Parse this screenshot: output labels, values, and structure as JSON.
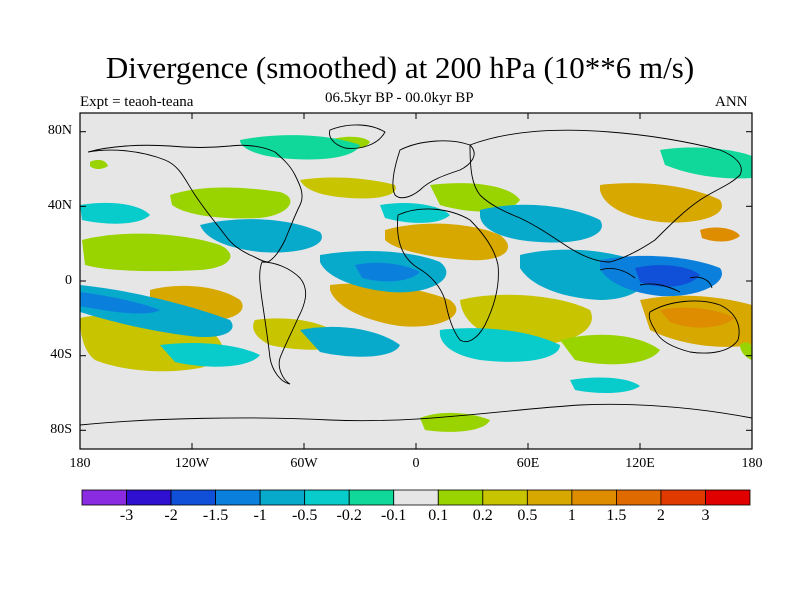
{
  "title": "Divergence (smoothed) at 200 hPa (10**6 m/s)",
  "experiment": "Expt = teaoh-teana",
  "period": "06.5kyr BP - 00.0kyr BP",
  "season": "ANN",
  "lat_labels": [
    "80N",
    "40N",
    "0",
    "40S",
    "80S"
  ],
  "lon_labels": [
    "180",
    "120W",
    "60W",
    "0",
    "60E",
    "120E",
    "180"
  ],
  "colorbar": {
    "labels": [
      "-3",
      "-2",
      "-1.5",
      "-1",
      "-0.5",
      "-0.2",
      "-0.1",
      "0.1",
      "0.2",
      "0.5",
      "1",
      "1.5",
      "2",
      "3"
    ],
    "colors": [
      "#8a2be2",
      "#3010d0",
      "#1050d8",
      "#0a80dc",
      "#08aacc",
      "#08cccc",
      "#10d89a",
      "#e6e6e6",
      "#9ad400",
      "#c8c400",
      "#d6a800",
      "#de8c00",
      "#de6a00",
      "#e03a00",
      "#e00000"
    ]
  },
  "colors": {
    "ocean_neutral": "#e6e6e6",
    "coastline": "#000000"
  }
}
